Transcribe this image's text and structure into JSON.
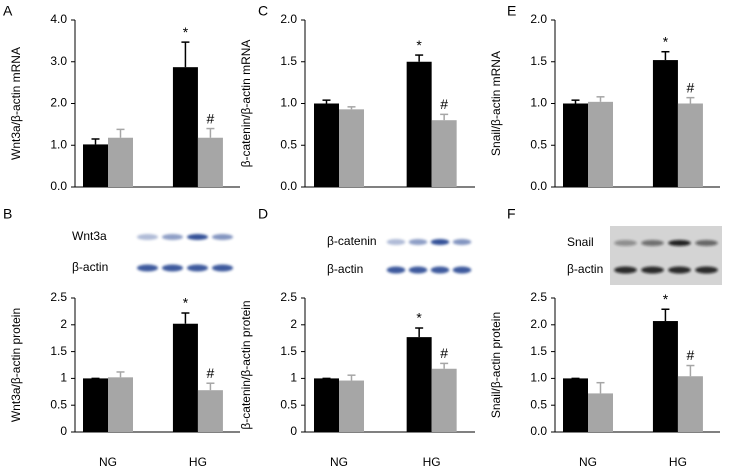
{
  "chart_data": [
    {
      "type": "bar",
      "panel": "A",
      "y_label": "Wnt3a/β-actin mRNA",
      "categories": [
        null,
        null
      ],
      "series": [
        {
          "color": "#000000",
          "values": [
            1.02,
            2.87
          ],
          "errors": [
            0.13,
            0.6
          ],
          "marks": [
            null,
            "*"
          ]
        },
        {
          "color": "#a6a6a6",
          "values": [
            1.18,
            1.18
          ],
          "errors": [
            0.2,
            0.22
          ],
          "marks": [
            null,
            "#"
          ]
        }
      ],
      "ylim": [
        0,
        4
      ],
      "yticks": [
        {
          "value": 0,
          "label": "0.0"
        },
        {
          "value": 1,
          "label": "1.0"
        },
        {
          "value": 2,
          "label": "2.0"
        },
        {
          "value": 3,
          "label": "3.0"
        },
        {
          "value": 4,
          "label": "4.0"
        }
      ]
    },
    {
      "type": "bar",
      "panel": "C",
      "y_label": "β-catenin/β-actin mRNA",
      "categories": [
        null,
        null
      ],
      "series": [
        {
          "color": "#000000",
          "values": [
            1.0,
            1.5
          ],
          "errors": [
            0.04,
            0.08
          ],
          "marks": [
            null,
            "*"
          ]
        },
        {
          "color": "#a6a6a6",
          "values": [
            0.93,
            0.8
          ],
          "errors": [
            0.03,
            0.07
          ],
          "marks": [
            null,
            "#"
          ]
        }
      ],
      "ylim": [
        0,
        2
      ],
      "yticks": [
        {
          "value": 0,
          "label": "0.0"
        },
        0.5,
        {
          "value": 1,
          "label": "1.0"
        },
        1.5,
        {
          "value": 2,
          "label": "2.0"
        }
      ]
    },
    {
      "type": "bar",
      "panel": "E",
      "y_label": "Snail/β-actin mRNA",
      "categories": [
        null,
        null
      ],
      "series": [
        {
          "color": "#000000",
          "values": [
            1.0,
            1.52
          ],
          "errors": [
            0.04,
            0.1
          ],
          "marks": [
            null,
            "*"
          ]
        },
        {
          "color": "#a6a6a6",
          "values": [
            1.02,
            1.0
          ],
          "errors": [
            0.06,
            0.07
          ],
          "marks": [
            null,
            "#"
          ]
        }
      ],
      "ylim": [
        0,
        2
      ],
      "yticks": [
        {
          "value": 0,
          "label": "0.0"
        },
        0.5,
        {
          "value": 1,
          "label": "1.0"
        },
        1.5,
        {
          "value": 2,
          "label": "2.0"
        }
      ]
    },
    {
      "type": "bar",
      "panel": "B",
      "y_label": "Wnt3a/β-actin protein",
      "categories": [
        "NG",
        "HG"
      ],
      "blot_labels": [
        "Wnt3a",
        "β-actin"
      ],
      "series": [
        {
          "color": "#000000",
          "values": [
            1.0,
            2.02
          ],
          "errors": [
            0,
            0.2
          ],
          "marks": [
            null,
            "*"
          ]
        },
        {
          "color": "#a6a6a6",
          "values": [
            1.02,
            0.78
          ],
          "errors": [
            0.1,
            0.13
          ],
          "marks": [
            null,
            "#"
          ]
        }
      ],
      "ylim": [
        0,
        2.5
      ],
      "yticks": [
        0,
        0.5,
        1,
        1.5,
        2,
        2.5
      ]
    },
    {
      "type": "bar",
      "panel": "D",
      "y_label": "β-catenin/β-actin protein",
      "categories": [
        "NG",
        "HG"
      ],
      "blot_labels": [
        "β-catenin",
        "β-actin"
      ],
      "series": [
        {
          "color": "#000000",
          "values": [
            1.0,
            1.77
          ],
          "errors": [
            0,
            0.17
          ],
          "marks": [
            null,
            "*"
          ]
        },
        {
          "color": "#a6a6a6",
          "values": [
            0.96,
            1.18
          ],
          "errors": [
            0.1,
            0.1
          ],
          "marks": [
            null,
            "#"
          ]
        }
      ],
      "ylim": [
        0,
        2.5
      ],
      "yticks": [
        0,
        0.5,
        1,
        1.5,
        2,
        2.5
      ]
    },
    {
      "type": "bar",
      "panel": "F",
      "y_label": "Snail/β-actin protein",
      "categories": [
        "NG",
        "HG"
      ],
      "blot_labels": [
        "Snail",
        "β-actin"
      ],
      "series": [
        {
          "color": "#000000",
          "values": [
            1.0,
            2.07
          ],
          "errors": [
            0,
            0.22
          ],
          "marks": [
            null,
            "*"
          ]
        },
        {
          "color": "#a6a6a6",
          "values": [
            0.72,
            1.04
          ],
          "errors": [
            0.2,
            0.2
          ],
          "marks": [
            null,
            "#"
          ]
        }
      ],
      "ylim": [
        0,
        2.5
      ],
      "yticks": [
        {
          "value": 0,
          "label": "0.0"
        },
        0.5,
        {
          "value": 1,
          "label": "1.0"
        },
        1.5,
        {
          "value": 2,
          "label": "2.0"
        },
        2.5
      ]
    }
  ]
}
